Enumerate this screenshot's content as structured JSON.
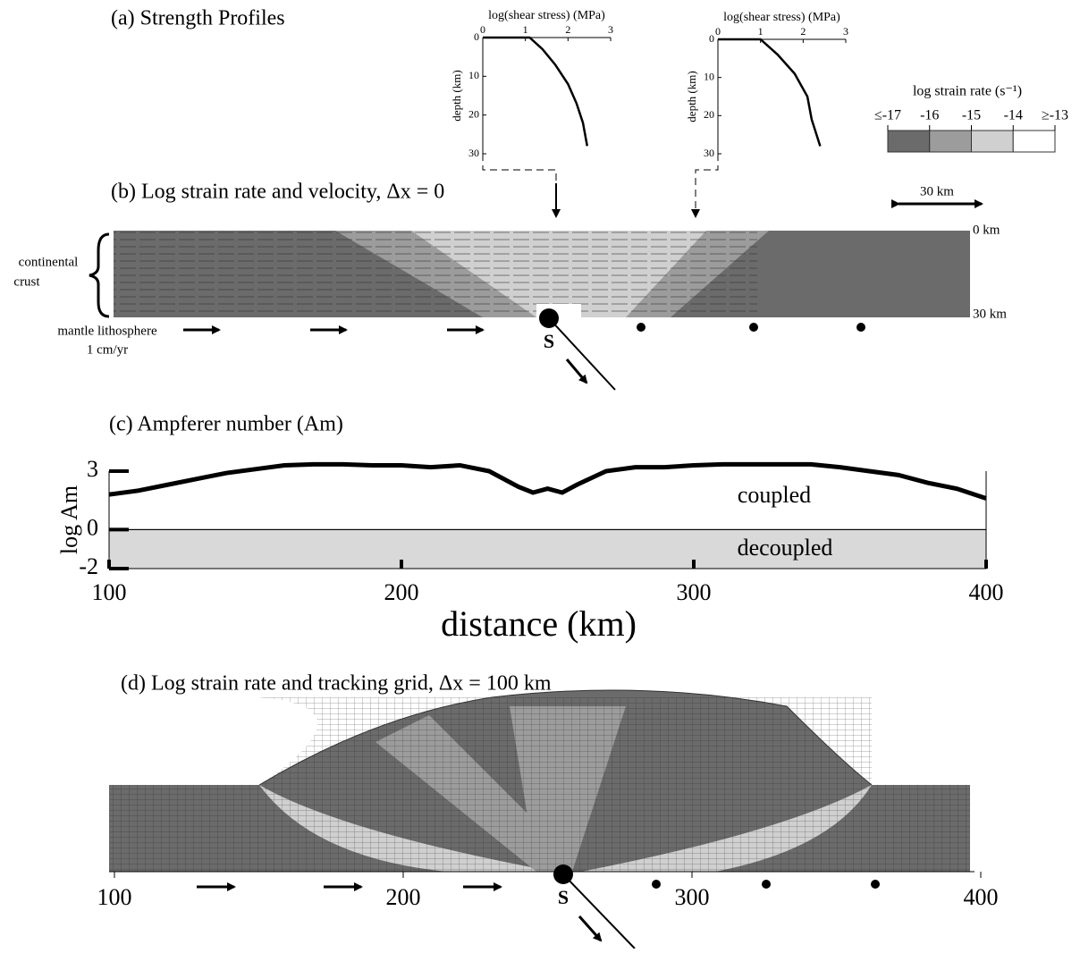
{
  "panel_a": {
    "title": "(a) Strength Profiles"
  },
  "legend": {
    "title": "log strain rate (s⁻¹)",
    "labels": [
      "≤-17",
      "-16",
      "-15",
      "-14",
      "≥-13"
    ],
    "colors": [
      "#6b6b6b",
      "#9c9c9c",
      "#d0d0d0",
      "#ffffff"
    ]
  },
  "panel_b": {
    "title": "(b) Log strain rate and velocity, Δx = 0",
    "crust_label": [
      "continental",
      "crust"
    ],
    "mantle_label": [
      "mantle lithosphere",
      "1 cm/yr"
    ],
    "suture": "S",
    "top_depth": "0 km",
    "bottom_depth": "30 km",
    "scale": "30 km"
  },
  "panel_d": {
    "title": "(d) Log strain rate and tracking grid, Δx = 100 km",
    "x_ticks": [
      100,
      200,
      300,
      400
    ],
    "suture": "S"
  },
  "chart_data": [
    {
      "type": "line",
      "x_label": "log(shear stress) (MPa)",
      "y_label": "depth (km)",
      "xlim": [
        0,
        3
      ],
      "ylim": [
        0,
        30
      ],
      "y_inverted": true,
      "xticks": [
        0,
        1,
        2,
        3
      ],
      "yticks": [
        0,
        10,
        20,
        30
      ],
      "x": [
        0,
        1.1,
        1.4,
        1.7,
        2.0,
        2.2,
        2.35,
        2.45
      ],
      "values": [
        0,
        0,
        3,
        7,
        12,
        17,
        22,
        28
      ]
    },
    {
      "type": "line",
      "x_label": "log(shear stress) (MPa)",
      "y_label": "depth (km)",
      "xlim": [
        0,
        3
      ],
      "ylim": [
        0,
        30
      ],
      "y_inverted": true,
      "xticks": [
        0,
        1,
        2,
        3
      ],
      "yticks": [
        0,
        10,
        20,
        30
      ],
      "x": [
        0,
        1.0,
        1.4,
        1.8,
        2.1,
        2.2,
        2.4
      ],
      "values": [
        0,
        0,
        4,
        9,
        15,
        21,
        28
      ]
    },
    {
      "type": "line",
      "title": "(c) Ampferer number (Am)",
      "x_label": "distance (km)",
      "y_label": "log Am",
      "xlim": [
        100,
        400
      ],
      "ylim": [
        -2,
        3
      ],
      "xticks": [
        100,
        200,
        300,
        400
      ],
      "yticks": [
        -2,
        0,
        3
      ],
      "annotations": [
        "coupled",
        "decoupled"
      ],
      "x": [
        100,
        110,
        120,
        130,
        140,
        150,
        160,
        170,
        180,
        190,
        200,
        210,
        220,
        230,
        240,
        245,
        250,
        255,
        260,
        270,
        280,
        290,
        300,
        310,
        320,
        330,
        340,
        350,
        360,
        370,
        380,
        390,
        400
      ],
      "values": [
        1.8,
        2.0,
        2.3,
        2.6,
        2.9,
        3.1,
        3.3,
        3.35,
        3.35,
        3.3,
        3.3,
        3.2,
        3.3,
        3.0,
        2.2,
        1.9,
        2.1,
        1.9,
        2.3,
        3.0,
        3.2,
        3.2,
        3.3,
        3.35,
        3.35,
        3.35,
        3.35,
        3.2,
        3.0,
        2.8,
        2.4,
        2.1,
        1.6
      ]
    }
  ]
}
